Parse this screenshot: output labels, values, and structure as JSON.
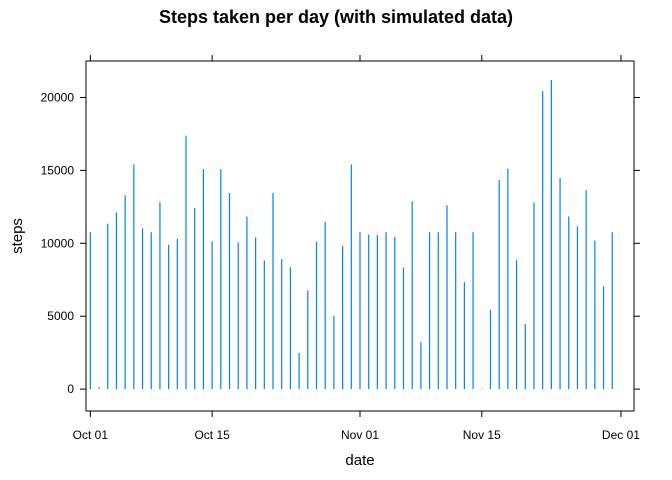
{
  "chart_data": {
    "type": "bar",
    "title": "Steps taken per day (with simulated data)",
    "xlabel": "date",
    "ylabel": "steps",
    "x_tick_labels": [
      "Oct 01",
      "Oct 15",
      "Nov 01",
      "Nov 15",
      "Dec 01"
    ],
    "y_ticks": [
      0,
      5000,
      10000,
      15000,
      20000
    ],
    "ylim": [
      -1500,
      22500
    ],
    "xlim_day": [
      -0.5,
      62.5
    ],
    "bar_color": "#0080ff",
    "grid": false,
    "x_dates": [
      "2012-10-01",
      "2012-10-02",
      "2012-10-03",
      "2012-10-04",
      "2012-10-05",
      "2012-10-06",
      "2012-10-07",
      "2012-10-08",
      "2012-10-09",
      "2012-10-10",
      "2012-10-11",
      "2012-10-12",
      "2012-10-13",
      "2012-10-14",
      "2012-10-15",
      "2012-10-16",
      "2012-10-17",
      "2012-10-18",
      "2012-10-19",
      "2012-10-20",
      "2012-10-21",
      "2012-10-22",
      "2012-10-23",
      "2012-10-24",
      "2012-10-25",
      "2012-10-26",
      "2012-10-27",
      "2012-10-28",
      "2012-10-29",
      "2012-10-30",
      "2012-10-31",
      "2012-11-01",
      "2012-11-02",
      "2012-11-03",
      "2012-11-04",
      "2012-11-05",
      "2012-11-06",
      "2012-11-07",
      "2012-11-08",
      "2012-11-09",
      "2012-11-10",
      "2012-11-11",
      "2012-11-12",
      "2012-11-13",
      "2012-11-14",
      "2012-11-15",
      "2012-11-16",
      "2012-11-17",
      "2012-11-18",
      "2012-11-19",
      "2012-11-20",
      "2012-11-21",
      "2012-11-22",
      "2012-11-23",
      "2012-11-24",
      "2012-11-25",
      "2012-11-26",
      "2012-11-27",
      "2012-11-28",
      "2012-11-29",
      "2012-11-30"
    ],
    "values": [
      10766,
      126,
      11352,
      12116,
      13294,
      15420,
      11015,
      10766,
      12811,
      9900,
      10304,
      17382,
      12426,
      15098,
      10139,
      15084,
      13452,
      10056,
      11829,
      10395,
      8821,
      13460,
      8918,
      8355,
      2492,
      6778,
      10119,
      11458,
      5018,
      9819,
      15414,
      10766,
      10600,
      10571,
      10766,
      10439,
      8334,
      12883,
      3219,
      10766,
      10766,
      12608,
      10765,
      7336,
      10766,
      41,
      5441,
      14339,
      15110,
      8841,
      4472,
      12787,
      20427,
      21194,
      14478,
      11834,
      11162,
      13646,
      10183,
      7047,
      10766
    ]
  }
}
